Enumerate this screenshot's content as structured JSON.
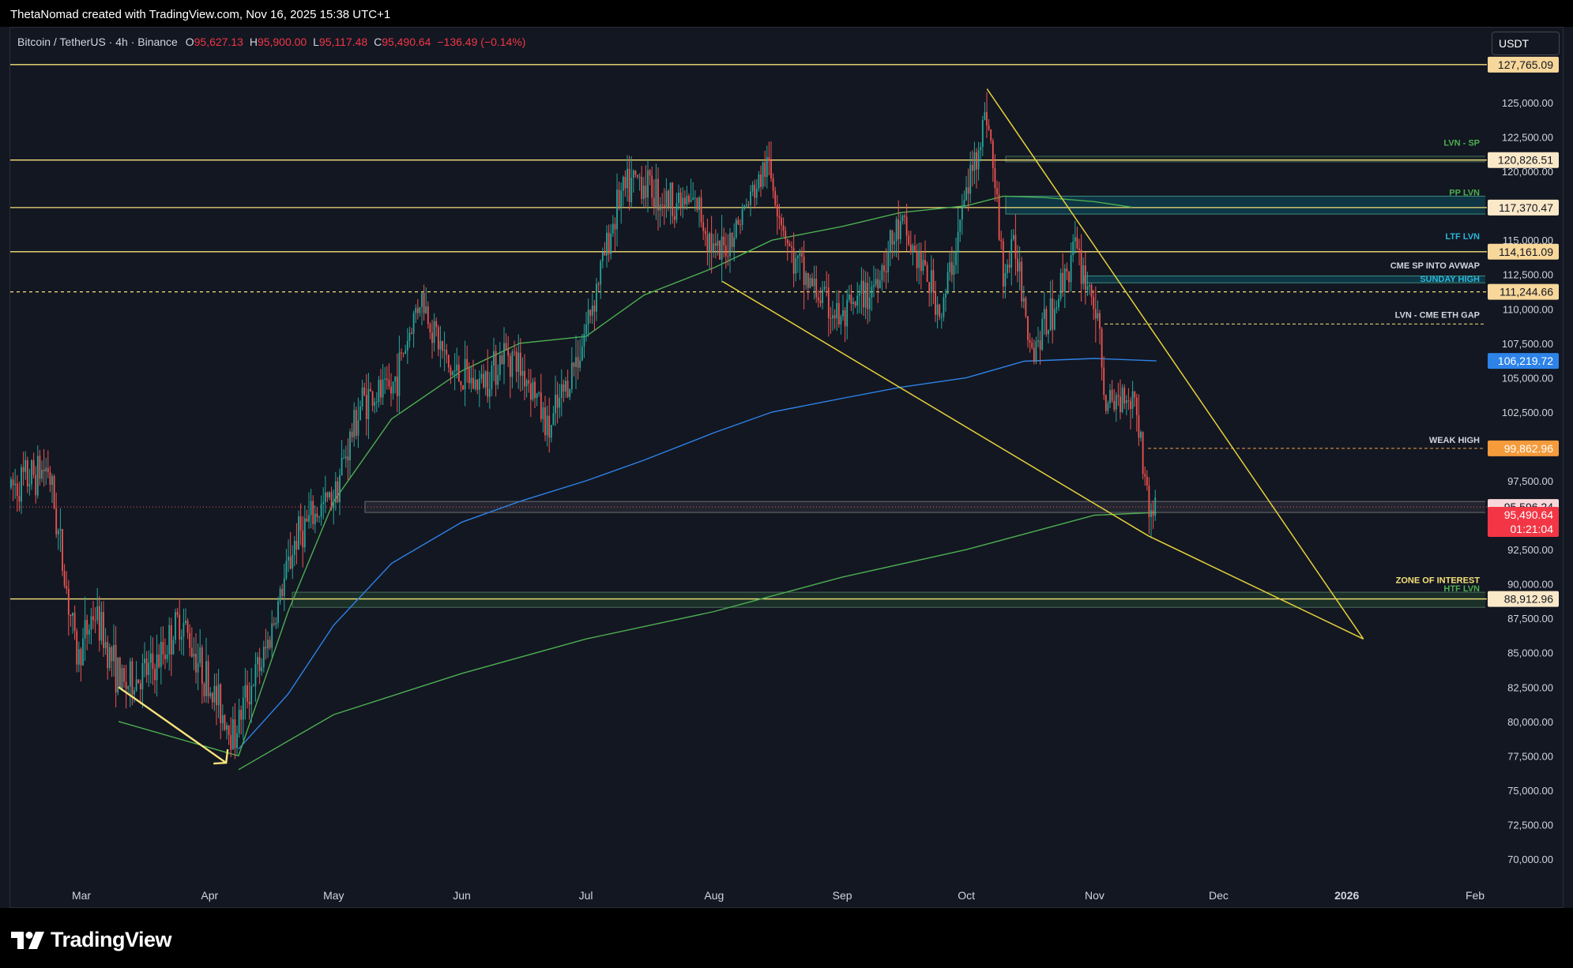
{
  "header": {
    "attribution": "ThetaNomad created with TradingView.com, Nov 16, 2025 15:38 UTC+1"
  },
  "symbol": {
    "name": "Bitcoin / TetherUS · 4h · Binance",
    "o_label": "O",
    "o": "95,627.13",
    "h_label": "H",
    "h": "95,900.00",
    "l_label": "L",
    "l": "95,117.48",
    "c_label": "C",
    "c": "95,490.64",
    "change": "−136.49 (−0.14%)"
  },
  "currency_button": "USDT",
  "footer": {
    "brand": "TradingView"
  },
  "colors": {
    "background": "#131722",
    "up": "#26a69a",
    "down": "#ef5350",
    "level_line": "#f7e27a",
    "wedge": "#e6d13a",
    "ma_green": "#4caf50",
    "ma_blue": "#2d83e8"
  },
  "chart_data": {
    "type": "line",
    "title": "",
    "xlabel": "",
    "ylabel": "",
    "ylim": [
      67500,
      130000
    ],
    "x_ticks": [
      "Mar",
      "Apr",
      "May",
      "Jun",
      "Jul",
      "Aug",
      "Sep",
      "Oct",
      "Nov",
      "Dec",
      "2026",
      "Feb"
    ],
    "y_ticks": [
      "125,000.00",
      "122,500.00",
      "120,000.00",
      "117,500.00",
      "115,000.00",
      "112,500.00",
      "110,000.00",
      "107,500.00",
      "105,000.00",
      "102,500.00",
      "97,500.00",
      "92,500.00",
      "90,000.00",
      "87,500.00",
      "85,000.00",
      "82,500.00",
      "80,000.00",
      "77,500.00",
      "75,000.00",
      "72,500.00",
      "70,000.00"
    ],
    "series": [
      {
        "style": "candles",
        "color_up": "#26a69a",
        "color_down": "#ef5350",
        "x": [
          "2025-02-12",
          "2025-02-21",
          "2025-02-28",
          "2025-03-04",
          "2025-03-11",
          "2025-03-19",
          "2025-03-25",
          "2025-04-01",
          "2025-04-07",
          "2025-04-10",
          "2025-04-14",
          "2025-04-22",
          "2025-05-01",
          "2025-05-08",
          "2025-05-15",
          "2025-05-22",
          "2025-05-29",
          "2025-06-05",
          "2025-06-12",
          "2025-06-18",
          "2025-06-22",
          "2025-06-30",
          "2025-07-09",
          "2025-07-14",
          "2025-07-20",
          "2025-07-28",
          "2025-08-02",
          "2025-08-08",
          "2025-08-14",
          "2025-08-20",
          "2025-08-25",
          "2025-09-01",
          "2025-09-08",
          "2025-09-15",
          "2025-09-22",
          "2025-09-25",
          "2025-10-01",
          "2025-10-06",
          "2025-10-10",
          "2025-10-13",
          "2025-10-17",
          "2025-10-22",
          "2025-10-27",
          "2025-11-01",
          "2025-11-04",
          "2025-11-08",
          "2025-11-11",
          "2025-11-14",
          "2025-11-16"
        ],
        "y": [
          97000,
          98500,
          84500,
          88000,
          82500,
          84000,
          87500,
          82500,
          79000,
          82000,
          84500,
          93500,
          96500,
          103500,
          104000,
          111000,
          105500,
          104500,
          107000,
          104500,
          101000,
          107500,
          118000,
          119500,
          118000,
          117500,
          113500,
          117000,
          120500,
          113500,
          111500,
          109000,
          111500,
          116000,
          112000,
          109500,
          118500,
          124500,
          112500,
          114500,
          107000,
          110000,
          114500,
          110500,
          102500,
          104000,
          103500,
          95500,
          95490.64
        ]
      }
    ],
    "moving_averages": [
      {
        "name": "",
        "color": "#2d83e8",
        "x": [
          "2025-04-08",
          "2025-04-20",
          "2025-05-01",
          "2025-05-15",
          "2025-06-01",
          "2025-06-15",
          "2025-07-01",
          "2025-07-15",
          "2025-08-01",
          "2025-08-15",
          "2025-09-01",
          "2025-09-15",
          "2025-10-01",
          "2025-10-15",
          "2025-11-01",
          "2025-11-16"
        ],
        "y": [
          78000,
          82000,
          87000,
          91500,
          94500,
          96000,
          97500,
          99000,
          101000,
          102500,
          103500,
          104300,
          105000,
          106200,
          106400,
          106219.72
        ]
      },
      {
        "name": "",
        "color": "#4caf50",
        "x": [
          "2025-03-10",
          "2025-04-08",
          "2025-04-20",
          "2025-05-01",
          "2025-05-15",
          "2025-06-01",
          "2025-06-15",
          "2025-07-01",
          "2025-07-15",
          "2025-08-01",
          "2025-08-15",
          "2025-09-01",
          "2025-09-15",
          "2025-10-01",
          "2025-10-10",
          "2025-10-20",
          "2025-11-01",
          "2025-11-10"
        ],
        "y": [
          80000,
          77500,
          88000,
          96000,
          102000,
          105500,
          107500,
          108000,
          111000,
          113000,
          115000,
          116000,
          117000,
          117500,
          118200,
          118100,
          117800,
          117400
        ]
      },
      {
        "name": "",
        "color": "#4caf50",
        "x": [
          "2025-04-08",
          "2025-05-01",
          "2025-06-01",
          "2025-07-01",
          "2025-08-01",
          "2025-09-01",
          "2025-10-01",
          "2025-11-01",
          "2025-11-16"
        ],
        "y": [
          76500,
          80500,
          83500,
          86000,
          88000,
          90500,
          92500,
          95000,
          95200
        ]
      }
    ],
    "trendlines": [
      {
        "color": "#e6d13a",
        "x": [
          "2025-08-03",
          "2025-11-14",
          "2026-01-05"
        ],
        "y": [
          112000,
          93500,
          86000
        ]
      },
      {
        "color": "#e6d13a",
        "x": [
          "2025-10-06",
          "2026-01-05"
        ],
        "y": [
          126000,
          86000
        ]
      },
      {
        "color": "#f7e27a",
        "x": [
          "2025-03-10",
          "2025-04-05"
        ],
        "y": [
          82500,
          77000
        ],
        "arrow": true
      }
    ],
    "levels": [
      {
        "price": 127765.09,
        "label": "",
        "tag": "127,765.09",
        "style": "solid"
      },
      {
        "price": 120826.51,
        "label": "LVN - SP",
        "tag": "120,826.51",
        "style": "solid"
      },
      {
        "price": 117370.47,
        "label": "PP LVN",
        "tag": "117,370.47",
        "style": "solid"
      },
      {
        "price": 114161.09,
        "label": "LTF LVN",
        "tag": "114,161.09",
        "style": "solid"
      },
      {
        "price": 111244.66,
        "label": "",
        "tag": "111,244.66",
        "style": "dashed"
      },
      {
        "price": 88912.96,
        "label": "",
        "tag": "88,912.96",
        "style": "solid"
      }
    ],
    "annotations": [
      "CME SP INTO AVWAP",
      "SUNDAY HIGH",
      "LVN - CME ETH GAP",
      "WEAK HIGH",
      "ZONE OF INTEREST",
      "HTF LVN"
    ],
    "price_tags": {
      "ma_blue": "106,219.72",
      "weak_high": "99,862.96",
      "prev_close": "95,596.24",
      "last": "95,490.64",
      "countdown": "01:21:04"
    },
    "grid": false,
    "legend": "none"
  }
}
